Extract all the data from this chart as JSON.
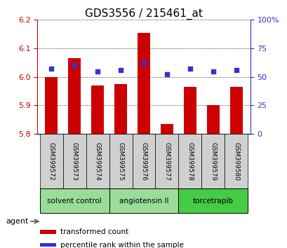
{
  "title": "GDS3556 / 215461_at",
  "samples": [
    "GSM399572",
    "GSM399573",
    "GSM399574",
    "GSM399575",
    "GSM399576",
    "GSM399577",
    "GSM399578",
    "GSM399579",
    "GSM399580"
  ],
  "transformed_counts": [
    6.0,
    6.065,
    5.97,
    5.975,
    6.155,
    5.835,
    5.965,
    5.9,
    5.965
  ],
  "percentile_ranks": [
    57,
    60,
    55,
    56,
    62,
    52,
    57,
    55,
    56
  ],
  "ylim_left": [
    5.8,
    6.2
  ],
  "ylim_right": [
    0,
    100
  ],
  "yticks_left": [
    5.8,
    5.9,
    6.0,
    6.1,
    6.2
  ],
  "yticks_right": [
    0,
    25,
    50,
    75,
    100
  ],
  "yticklabels_right": [
    "0",
    "25",
    "50",
    "75",
    "100%"
  ],
  "bar_color": "#cc0000",
  "dot_color": "#3333cc",
  "bar_bottom": 5.8,
  "groups": [
    {
      "label": "solvent control",
      "indices": [
        0,
        1,
        2
      ],
      "color": "#99dd99"
    },
    {
      "label": "angiotensin II",
      "indices": [
        3,
        4,
        5
      ],
      "color": "#99dd99"
    },
    {
      "label": "torcetrapib",
      "indices": [
        6,
        7,
        8
      ],
      "color": "#44cc44"
    }
  ],
  "agent_label": "agent",
  "legend_items": [
    {
      "color": "#cc0000",
      "label": "transformed count"
    },
    {
      "color": "#3333cc",
      "label": "percentile rank within the sample"
    }
  ],
  "title_fontsize": 11,
  "tick_fontsize": 8,
  "axis_color_left": "#cc0000",
  "axis_color_right": "#3333cc",
  "sample_box_color": "#d0d0d0",
  "bar_width": 0.55
}
